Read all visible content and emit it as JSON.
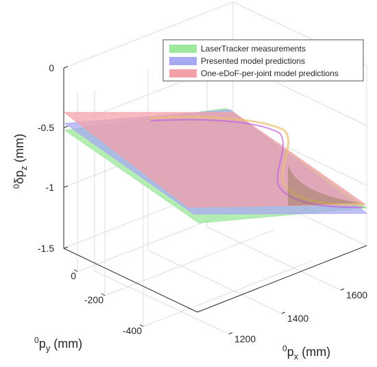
{
  "chart_data": {
    "type": "surface3d",
    "title": "",
    "axes": {
      "x": {
        "ticks": [
          1200,
          1400,
          1600
        ],
        "labels": [
          "1200",
          "1400",
          "1600"
        ],
        "label_sup": "0",
        "label_main": "p",
        "label_sub": "x",
        "label_unit": " (mm)"
      },
      "y": {
        "ticks": [
          0,
          -200,
          -400
        ],
        "labels": [
          "0",
          "-200",
          "-400"
        ],
        "label_sup": "0",
        "label_main": "p",
        "label_sub": "y",
        "label_unit": " (mm)"
      },
      "z": {
        "ticks": [
          0,
          -0.5,
          -1,
          -1.5
        ],
        "labels": [
          "0",
          "-0.5",
          "-1",
          "-1.5"
        ],
        "label_sup": "0",
        "label_main": "δp",
        "label_sub": "z",
        "label_unit": " (mm)"
      }
    },
    "grid": true,
    "legend_position": "top-right",
    "series": [
      {
        "name": "LaserTracker measurements",
        "color": "#9ee89e"
      },
      {
        "name": "Presented model predictions",
        "color": "#a8a8f2"
      },
      {
        "name": "One-eDoF-per-joint model predictions",
        "color": "#f4a0a8"
      }
    ]
  }
}
